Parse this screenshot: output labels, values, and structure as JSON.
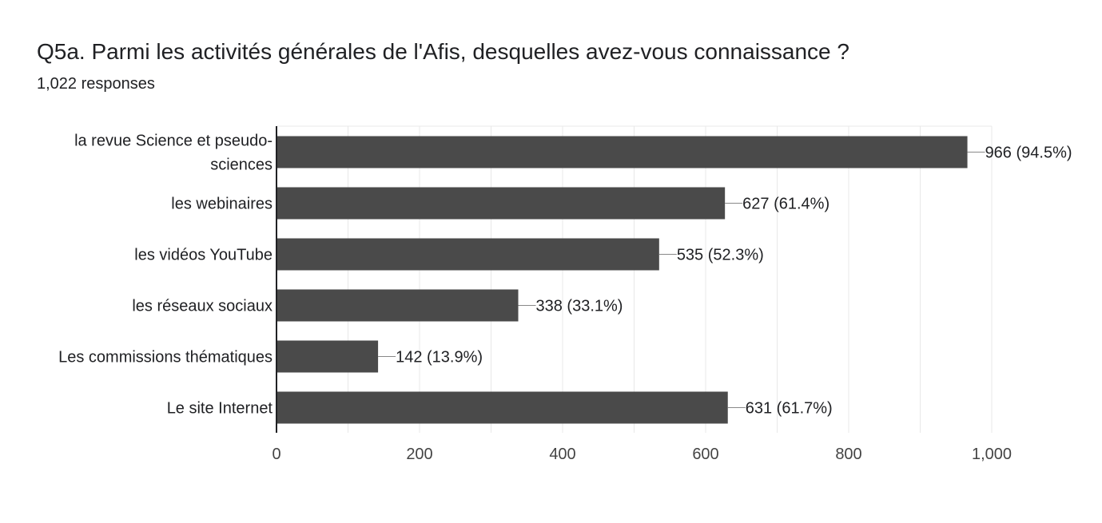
{
  "header": {
    "title": "Q5a. Parmi les activités générales de l'Afis, desquelles avez-vous connaissance ?",
    "responses": "1,022 responses"
  },
  "colors": {
    "bar": "#4a4a4a",
    "gridline": "#e8e8e8",
    "axis": "#202124",
    "text": "#202124",
    "tick_text": "#444444"
  },
  "chart_data": {
    "type": "bar",
    "orientation": "horizontal",
    "title": "",
    "xlabel": "",
    "ylabel": "",
    "categories": [
      [
        "la revue Science et pseudo-",
        "sciences"
      ],
      [
        "les webinaires"
      ],
      [
        "les vidéos YouTube"
      ],
      [
        "les réseaux sociaux"
      ],
      [
        "Les commissions thématiques"
      ],
      [
        "Le site Internet"
      ]
    ],
    "values": [
      966,
      627,
      535,
      338,
      142,
      631
    ],
    "data_labels": [
      "966 (94.5%)",
      "627 (61.4%)",
      "535 (52.3%)",
      "338 (33.1%)",
      "142 (13.9%)",
      "631 (61.7%)"
    ],
    "xlim": [
      0,
      1000
    ],
    "ticks": [
      0,
      200,
      400,
      600,
      800,
      1000
    ],
    "tick_labels": [
      "0",
      "200",
      "400",
      "600",
      "800",
      "1,000"
    ],
    "grid": true,
    "legend": "none"
  }
}
